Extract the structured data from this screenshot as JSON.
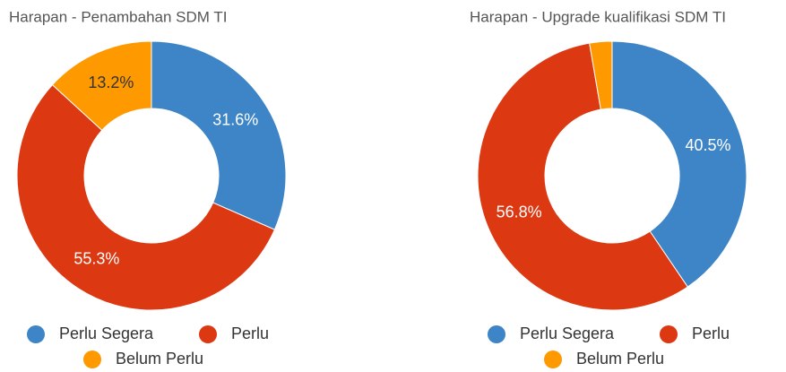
{
  "chart_data": [
    {
      "type": "pie",
      "title": "Harapan - Penambahan SDM TI",
      "categories": [
        "Perlu Segera",
        "Perlu",
        "Belum Perlu"
      ],
      "values": [
        31.6,
        55.3,
        13.2
      ],
      "value_labels": [
        "31.6%",
        "55.3%",
        "13.2%"
      ],
      "colors": [
        "#3d85c6",
        "#dc3912",
        "#ff9900"
      ]
    },
    {
      "type": "pie",
      "title": "Harapan -  Upgrade kualifikasi SDM TI",
      "categories": [
        "Perlu Segera",
        "Perlu",
        "Belum Perlu"
      ],
      "values": [
        40.5,
        56.8,
        2.7
      ],
      "value_labels": [
        "40.5%",
        "56.8%",
        null
      ],
      "colors": [
        "#3d85c6",
        "#dc3912",
        "#ff9900"
      ]
    }
  ]
}
